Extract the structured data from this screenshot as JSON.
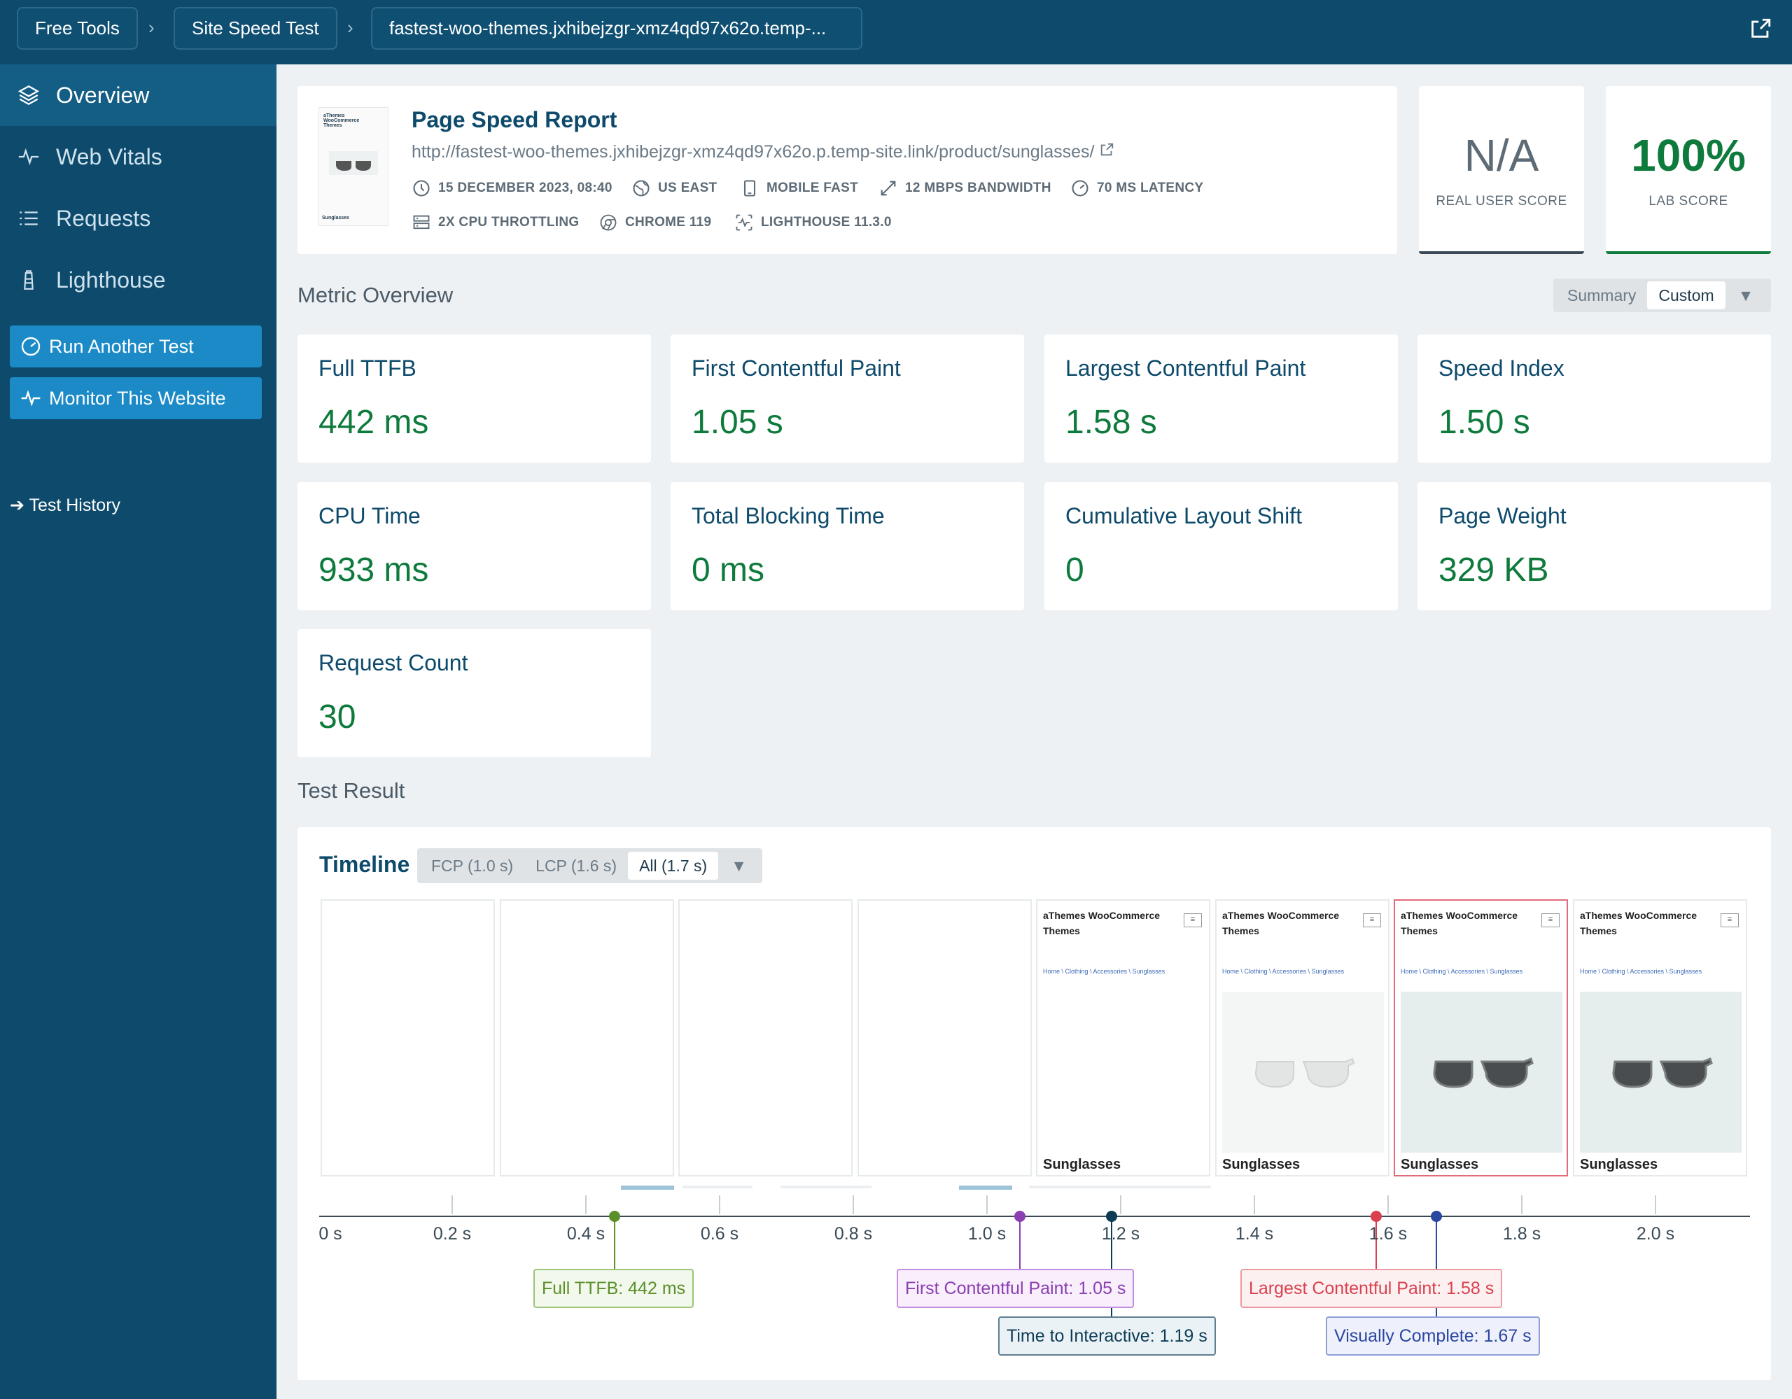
{
  "breadcrumbs": [
    "Free Tools",
    "Site Speed Test",
    "fastest-woo-themes.jxhibejzgr-xmz4qd97x62o.temp-..."
  ],
  "sidebar": {
    "nav": [
      "Overview",
      "Web Vitals",
      "Requests",
      "Lighthouse"
    ],
    "run_test": "Run Another Test",
    "monitor": "Monitor This Website",
    "history": "Test History"
  },
  "report": {
    "title": "Page Speed Report",
    "url": "http://fastest-woo-themes.jxhibejzgr-xmz4qd97x62o.p.temp-site.link/product/sunglasses/",
    "meta": {
      "date": "15 DECEMBER 2023, 08:40",
      "location": "US EAST",
      "device": "MOBILE FAST",
      "bandwidth": "12 MBPS BANDWIDTH",
      "latency": "70 MS LATENCY",
      "cpu": "2X CPU THROTTLING",
      "browser": "CHROME 119",
      "lighthouse": "LIGHTHOUSE 11.3.0"
    },
    "thumb_text": "aThemes WooCommerce Themes",
    "thumb_product": "Sunglasses"
  },
  "scores": {
    "real_user": {
      "value": "N/A",
      "label": "REAL USER SCORE"
    },
    "lab": {
      "value": "100%",
      "label": "LAB SCORE"
    }
  },
  "metric_overview": {
    "title": "Metric Overview",
    "toggle": [
      "Summary",
      "Custom"
    ],
    "metrics": [
      {
        "label": "Full TTFB",
        "value": "442 ms"
      },
      {
        "label": "First Contentful Paint",
        "value": "1.05 s"
      },
      {
        "label": "Largest Contentful Paint",
        "value": "1.58 s"
      },
      {
        "label": "Speed Index",
        "value": "1.50 s"
      },
      {
        "label": "CPU Time",
        "value": "933 ms"
      },
      {
        "label": "Total Blocking Time",
        "value": "0 ms"
      },
      {
        "label": "Cumulative Layout Shift",
        "value": "0"
      },
      {
        "label": "Page Weight",
        "value": "329 KB"
      },
      {
        "label": "Request Count",
        "value": "30"
      }
    ]
  },
  "test_result": {
    "title": "Test Result",
    "timeline_title": "Timeline",
    "timeline_tabs": [
      "FCP (1.0 s)",
      "LCP (1.6 s)",
      "All (1.7 s)"
    ],
    "frame_title": "aThemes WooCommerce Themes",
    "frame_crumbs": "Home \\ Clothing \\ Accessories \\ Sunglasses",
    "frame_product": "Sunglasses",
    "ticks": [
      "0 s",
      "0.2 s",
      "0.4 s",
      "0.6 s",
      "0.8 s",
      "1.0 s",
      "1.2 s",
      "1.4 s",
      "1.6 s",
      "1.8 s",
      "2.0 s"
    ],
    "events": {
      "ttfb": "Full TTFB: 442 ms",
      "fcp": "First Contentful Paint: 1.05 s",
      "tti": "Time to Interactive: 1.19 s",
      "lcp": "Largest Contentful Paint: 1.58 s",
      "vc": "Visually Complete: 1.67 s"
    }
  },
  "colors": {
    "brand": "#0d4a6b",
    "accent": "#1b8ac7",
    "good": "#0e7a3c",
    "ttfb": "#5b8f2a",
    "fcp": "#8b3fb0",
    "tti": "#0d3c55",
    "lcp": "#d9414f",
    "vc": "#2b46a0"
  }
}
